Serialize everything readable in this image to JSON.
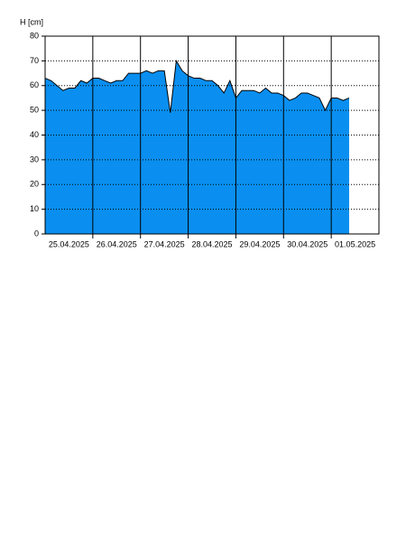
{
  "chart_data": {
    "type": "area",
    "ylabel": "H [cm]",
    "categories": [
      null,
      null,
      null,
      null,
      "25.04.2025",
      null,
      null,
      null,
      null,
      null,
      null,
      null,
      "26.04.2025",
      null,
      null,
      null,
      null,
      null,
      null,
      null,
      "27.04.2025",
      null,
      null,
      null,
      null,
      null,
      null,
      null,
      "28.04.2025",
      null,
      null,
      null,
      null,
      null,
      null,
      null,
      "29.04.2025",
      null,
      null,
      null,
      null,
      null,
      null,
      null,
      "30.04.2025",
      null,
      null,
      null,
      null,
      null,
      null,
      null,
      "01.05.2025",
      null,
      null,
      null,
      null
    ],
    "values": [
      63,
      62,
      60,
      58,
      59,
      59,
      62,
      61,
      63,
      63,
      62,
      61,
      62,
      62,
      65,
      65,
      65,
      66,
      65,
      66,
      66,
      49,
      70,
      66,
      64,
      63,
      63,
      62,
      62,
      60,
      57,
      62,
      55,
      58,
      58,
      58,
      57,
      59,
      57,
      57,
      56,
      54,
      55,
      57,
      57,
      56,
      55,
      50,
      55,
      55,
      54,
      55,
      null,
      null,
      null,
      null,
      null
    ],
    "color": "#0a8ff0",
    "ylim": [
      0,
      80
    ],
    "yticks": [
      0,
      10,
      20,
      30,
      40,
      50,
      60,
      70,
      80
    ],
    "grid": true
  }
}
